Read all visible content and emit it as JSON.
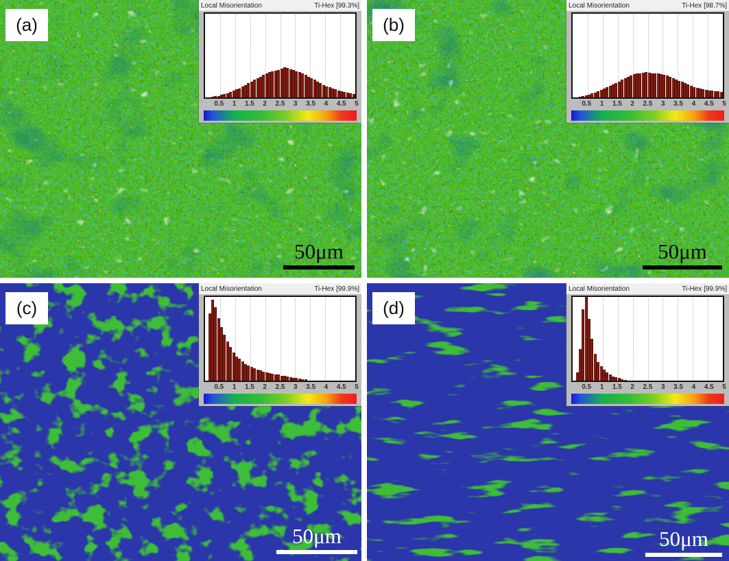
{
  "figure": {
    "background": "#ffffff",
    "layout": "2x2-ebsd-maps"
  },
  "panels": [
    {
      "label": "(a)",
      "scalebar": "50μm",
      "scalebar_color": "#0a0a0a",
      "map_base": "#62c23c",
      "map_style": "green speckled with red/yellow/white specks"
    },
    {
      "label": "(b)",
      "scalebar": "50μm",
      "scalebar_color": "#0a0a0a",
      "map_base": "#62c23c",
      "map_style": "green speckled with red/yellow/white specks"
    },
    {
      "label": "(c)",
      "scalebar": "50μm",
      "scalebar_color": "#ffffff",
      "map_base": "#2b36aa",
      "map_style": "blue with worm-like green structures"
    },
    {
      "label": "(d)",
      "scalebar": "50μm",
      "scalebar_color": "#ffffff",
      "map_base": "#2b36aa",
      "map_style": "blue with sparse elongated green laths"
    }
  ],
  "colorbar": {
    "min": 0,
    "max": 5,
    "stops": [
      "#1a1ac8 0%",
      "#2553dc 6%",
      "#16b04e 20%",
      "#35bd35 38%",
      "#7ccf22 54%",
      "#f3ea16 68%",
      "#f6a313 80%",
      "#ee3a17 90%",
      "#ed1c24 100%"
    ]
  },
  "chart_data": [
    {
      "type": "bar",
      "title": "Local Misorientation",
      "phase_label": "Ti-Hex [99.3%]",
      "x_start": 0.1,
      "x_step": 0.1,
      "xmax": 5,
      "xticks": [
        0.5,
        1,
        1.5,
        2,
        2.5,
        3,
        3.5,
        4,
        4.5,
        5
      ],
      "grid": true,
      "bar_color": "#7e1b10",
      "rel_heights": [
        0,
        0,
        0.01,
        0.015,
        0.02,
        0.03,
        0.04,
        0.05,
        0.065,
        0.08,
        0.095,
        0.11,
        0.13,
        0.15,
        0.17,
        0.19,
        0.21,
        0.23,
        0.25,
        0.27,
        0.285,
        0.3,
        0.31,
        0.32,
        0.33,
        0.345,
        0.36,
        0.35,
        0.34,
        0.33,
        0.315,
        0.3,
        0.285,
        0.27,
        0.25,
        0.23,
        0.21,
        0.19,
        0.17,
        0.15,
        0.135,
        0.12,
        0.105,
        0.095,
        0.085,
        0.075,
        0.065,
        0.06,
        0.05,
        0.045
      ]
    },
    {
      "type": "bar",
      "title": "Local Misorientation",
      "phase_label": "Ti-Hex [98.7%]",
      "x_start": 0.1,
      "x_step": 0.1,
      "xmax": 5,
      "xticks": [
        0.5,
        1,
        1.5,
        2,
        2.5,
        3,
        3.5,
        4,
        4.5,
        5
      ],
      "grid": true,
      "bar_color": "#7e1b10",
      "rel_heights": [
        0,
        0,
        0.01,
        0.02,
        0.025,
        0.035,
        0.05,
        0.06,
        0.075,
        0.09,
        0.105,
        0.12,
        0.14,
        0.155,
        0.17,
        0.19,
        0.21,
        0.23,
        0.25,
        0.265,
        0.275,
        0.285,
        0.29,
        0.295,
        0.3,
        0.295,
        0.29,
        0.29,
        0.285,
        0.28,
        0.27,
        0.26,
        0.245,
        0.23,
        0.215,
        0.2,
        0.185,
        0.17,
        0.155,
        0.14,
        0.125,
        0.115,
        0.105,
        0.095,
        0.09,
        0.085,
        0.08,
        0.075,
        0.07,
        0.065
      ]
    },
    {
      "type": "bar",
      "title": "Local Misorientation",
      "phase_label": "Ti-Hex [99.9%]",
      "x_start": 0.1,
      "x_step": 0.1,
      "xmax": 5,
      "xticks": [
        0.5,
        1,
        1.5,
        2,
        2.5,
        3,
        3.5,
        4,
        4.5,
        5
      ],
      "grid": true,
      "bar_color": "#7e1b10",
      "rel_heights": [
        0,
        0.8,
        0.97,
        0.88,
        0.75,
        0.64,
        0.55,
        0.47,
        0.4,
        0.34,
        0.29,
        0.26,
        0.23,
        0.2,
        0.18,
        0.16,
        0.145,
        0.13,
        0.12,
        0.11,
        0.1,
        0.09,
        0.085,
        0.075,
        0.07,
        0.06,
        0.055,
        0.05,
        0.04,
        0.035,
        0.03,
        0.025,
        0.02,
        0.015,
        0,
        0,
        0,
        0,
        0,
        0,
        0,
        0,
        0,
        0,
        0,
        0,
        0,
        0,
        0,
        0
      ]
    },
    {
      "type": "bar",
      "title": "Local Misorientation",
      "phase_label": "Ti-Hex [99.9%]",
      "x_start": 0.1,
      "x_step": 0.1,
      "xmax": 5,
      "xticks": [
        0.5,
        1,
        1.5,
        2,
        2.5,
        3,
        3.5,
        4,
        4.5,
        5
      ],
      "grid": true,
      "bar_color": "#7e1b10",
      "rel_heights": [
        0,
        0.1,
        0.38,
        0.85,
        1,
        0.74,
        0.5,
        0.32,
        0.22,
        0.17,
        0.13,
        0.1,
        0.07,
        0.05,
        0.04,
        0.03,
        0.02,
        0.012,
        0,
        0,
        0,
        0,
        0,
        0,
        0,
        0,
        0,
        0,
        0,
        0,
        0,
        0,
        0,
        0,
        0,
        0,
        0,
        0,
        0,
        0,
        0,
        0,
        0,
        0,
        0,
        0,
        0,
        0,
        0,
        0
      ]
    }
  ]
}
